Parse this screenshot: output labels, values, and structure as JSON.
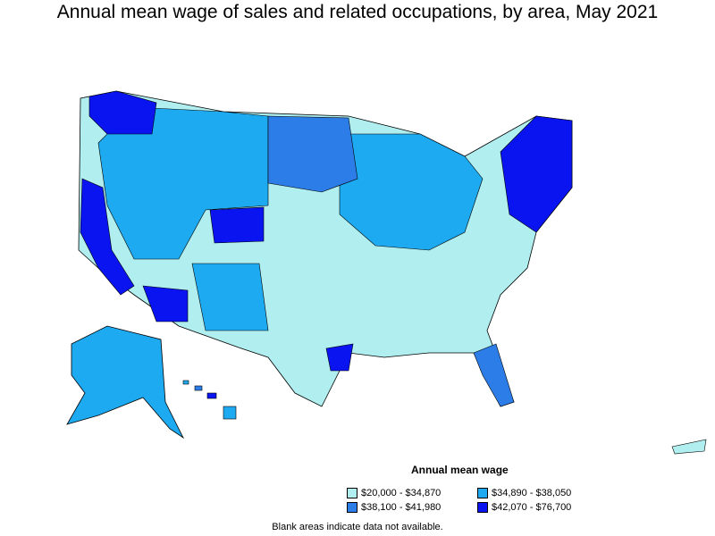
{
  "title": "Annual mean wage of sales and related occupations, by area, May 2021",
  "legend": {
    "title": "Annual mean wage",
    "items": [
      {
        "label": "$20,000 - $34,870",
        "color": "#b0eef0"
      },
      {
        "label": "$34,890 - $38,050",
        "color": "#1eaaf0"
      },
      {
        "label": "$38,100 - $41,980",
        "color": "#2c7de8"
      },
      {
        "label": "$42,070 - $76,700",
        "color": "#0a14f0"
      }
    ]
  },
  "note": "Blank areas indicate data not available.",
  "map": {
    "regions": [
      {
        "name": "pacific-northwest",
        "level": 3
      },
      {
        "name": "california-coast",
        "level": 3
      },
      {
        "name": "nevada-idaho-montana",
        "level": 1
      },
      {
        "name": "colorado-front-range",
        "level": 3
      },
      {
        "name": "arizona",
        "level": 3
      },
      {
        "name": "new-mexico",
        "level": 1
      },
      {
        "name": "texas-west",
        "level": 0
      },
      {
        "name": "texas-houston",
        "level": 3
      },
      {
        "name": "great-plains",
        "level": 0
      },
      {
        "name": "dakotas-minnesota",
        "level": 2
      },
      {
        "name": "midwest",
        "level": 1
      },
      {
        "name": "south",
        "level": 0
      },
      {
        "name": "florida",
        "level": 2
      },
      {
        "name": "northeast",
        "level": 3
      },
      {
        "name": "alaska",
        "level": 1
      },
      {
        "name": "hawaii",
        "level": 1
      }
    ]
  }
}
